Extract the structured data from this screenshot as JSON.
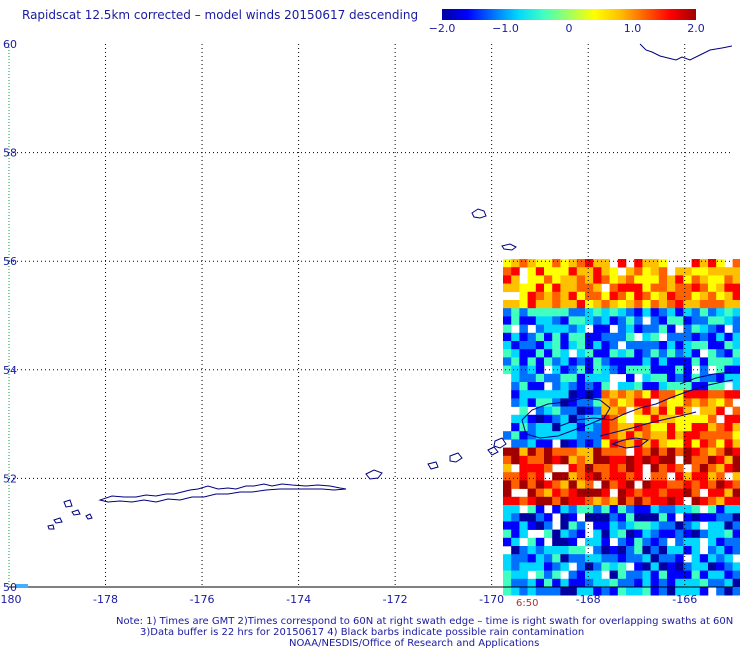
{
  "title": "Rapidscat 12.5km corrected – model winds 20150617 descending",
  "colorbar": {
    "labels": [
      "−2.0",
      "−1.0",
      "0",
      "1.0",
      "2.0"
    ],
    "values": [
      -2.0,
      -1.0,
      0,
      1.0,
      2.0
    ],
    "colors": [
      "#0000a0",
      "#0000ff",
      "#0070ff",
      "#00d8ff",
      "#40ffc0",
      "#a0ff60",
      "#ffff00",
      "#ffc000",
      "#ff6000",
      "#ff0000",
      "#a00000"
    ]
  },
  "map": {
    "lon_range": [
      -180,
      -165
    ],
    "lat_range": [
      50,
      60
    ],
    "lon_ticks": [
      {
        "value": -180,
        "label": "-180"
      },
      {
        "value": -178,
        "label": "-178"
      },
      {
        "value": -176,
        "label": "-176"
      },
      {
        "value": -174,
        "label": "-174"
      },
      {
        "value": -172,
        "label": "-172"
      },
      {
        "value": -170,
        "label": "-170"
      },
      {
        "value": -168,
        "label": "-168"
      },
      {
        "value": -166,
        "label": "-166"
      }
    ],
    "lat_ticks": [
      {
        "value": 60,
        "label": "60"
      },
      {
        "value": 58,
        "label": "58"
      },
      {
        "value": 56,
        "label": "56"
      },
      {
        "value": 54,
        "label": "54"
      },
      {
        "value": 52,
        "label": "52"
      },
      {
        "value": 50,
        "label": "50"
      }
    ],
    "swath_time": "6:50",
    "coast_color": "#000080",
    "grid_color": "#000000"
  },
  "notes": {
    "line1": "Note: 1) Times are GMT 2)Times correspond to 60N at right swath edge – time is right swath for overlapping swaths at 60N",
    "line2": "3)Data buffer is 22 hrs for 20150617 4) Black barbs indicate possible rain contamination",
    "line3": "NOAA/NESDIS/Office of Research and Applications"
  }
}
